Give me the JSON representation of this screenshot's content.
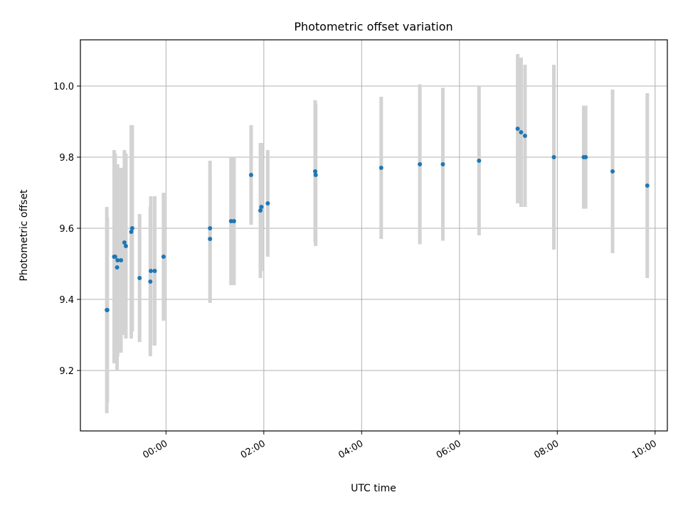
{
  "chart_data": {
    "type": "scatter",
    "title": "Photometric offset variation",
    "xlabel": "UTC time",
    "ylabel": "Photometric offset",
    "xlim": [
      -1.75,
      10.25
    ],
    "ylim": [
      9.03,
      10.13
    ],
    "grid": true,
    "x_ticks": [
      {
        "value": 0,
        "label": "00:00"
      },
      {
        "value": 2,
        "label": "02:00"
      },
      {
        "value": 4,
        "label": "04:00"
      },
      {
        "value": 6,
        "label": "06:00"
      },
      {
        "value": 8,
        "label": "08:00"
      },
      {
        "value": 10,
        "label": "10:00"
      }
    ],
    "y_ticks": [
      {
        "value": 9.2,
        "label": "9.2"
      },
      {
        "value": 9.4,
        "label": "9.4"
      },
      {
        "value": 9.6,
        "label": "9.6"
      },
      {
        "value": 9.8,
        "label": "9.8"
      },
      {
        "value": 10.0,
        "label": "10.0"
      }
    ],
    "point_color": "#1f77b4",
    "errorbar_color": "#d3d3d3",
    "points": [
      {
        "x": -1.21,
        "y": 9.37,
        "err": 0.29
      },
      {
        "x": -1.2,
        "y": 9.37,
        "err": 0.26
      },
      {
        "x": -1.06,
        "y": 9.52,
        "err": 0.3
      },
      {
        "x": -1.04,
        "y": 9.52,
        "err": 0.29
      },
      {
        "x": -1.0,
        "y": 9.49,
        "err": 0.29
      },
      {
        "x": -0.99,
        "y": 9.51,
        "err": 0.27
      },
      {
        "x": -0.92,
        "y": 9.51,
        "err": 0.26
      },
      {
        "x": -0.85,
        "y": 9.56,
        "err": 0.26
      },
      {
        "x": -0.82,
        "y": 9.55,
        "err": 0.26
      },
      {
        "x": -0.71,
        "y": 9.59,
        "err": 0.3
      },
      {
        "x": -0.69,
        "y": 9.6,
        "err": 0.29
      },
      {
        "x": -0.54,
        "y": 9.46,
        "err": 0.18
      },
      {
        "x": -0.32,
        "y": 9.45,
        "err": 0.21
      },
      {
        "x": -0.31,
        "y": 9.48,
        "err": 0.21
      },
      {
        "x": -0.23,
        "y": 9.48,
        "err": 0.21
      },
      {
        "x": -0.05,
        "y": 9.52,
        "err": 0.18
      },
      {
        "x": 0.9,
        "y": 9.6,
        "err": 0.19
      },
      {
        "x": 0.9,
        "y": 9.57,
        "err": 0.18
      },
      {
        "x": 1.33,
        "y": 9.62,
        "err": 0.18
      },
      {
        "x": 1.39,
        "y": 9.62,
        "err": 0.18
      },
      {
        "x": 1.74,
        "y": 9.75,
        "err": 0.14
      },
      {
        "x": 1.93,
        "y": 9.65,
        "err": 0.19
      },
      {
        "x": 1.95,
        "y": 9.66,
        "err": 0.18
      },
      {
        "x": 2.08,
        "y": 9.67,
        "err": 0.15
      },
      {
        "x": 3.05,
        "y": 9.76,
        "err": 0.2
      },
      {
        "x": 3.06,
        "y": 9.75,
        "err": 0.2
      },
      {
        "x": 4.4,
        "y": 9.77,
        "err": 0.2
      },
      {
        "x": 5.19,
        "y": 9.78,
        "err": 0.225
      },
      {
        "x": 5.66,
        "y": 9.78,
        "err": 0.215
      },
      {
        "x": 6.4,
        "y": 9.79,
        "err": 0.21
      },
      {
        "x": 7.19,
        "y": 9.88,
        "err": 0.21
      },
      {
        "x": 7.26,
        "y": 9.87,
        "err": 0.21
      },
      {
        "x": 7.34,
        "y": 9.86,
        "err": 0.2
      },
      {
        "x": 7.93,
        "y": 9.8,
        "err": 0.26
      },
      {
        "x": 8.54,
        "y": 9.8,
        "err": 0.145
      },
      {
        "x": 8.58,
        "y": 9.8,
        "err": 0.145
      },
      {
        "x": 9.13,
        "y": 9.76,
        "err": 0.23
      },
      {
        "x": 9.84,
        "y": 9.72,
        "err": 0.26
      }
    ]
  }
}
